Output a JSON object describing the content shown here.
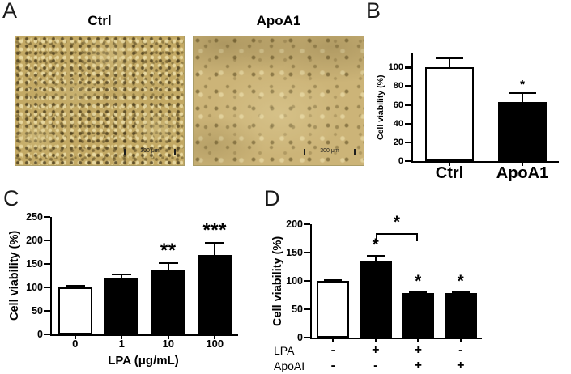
{
  "figure": {
    "panels": {
      "a": {
        "label": "A",
        "micrographs": [
          {
            "title": "Ctrl",
            "scale_bar_label": "300 μm",
            "cell_density": "dense"
          },
          {
            "title": "ApoA1",
            "scale_bar_label": "300 μm",
            "cell_density": "sparse"
          }
        ]
      },
      "b": {
        "label": "B"
      },
      "c": {
        "label": "C"
      },
      "d": {
        "label": "D"
      }
    }
  },
  "colors": {
    "bar_fill_dark": "#000000",
    "bar_fill_light": "#ffffff",
    "axis": "#000000",
    "micrograph_dense_bg": "#c3a964",
    "micrograph_sparse_bg": "#ccb478"
  },
  "chart_data": [
    {
      "id": "B",
      "type": "bar",
      "categories": [
        "Ctrl",
        "ApoA1"
      ],
      "values": [
        100,
        63
      ],
      "errors": [
        10,
        10
      ],
      "bar_styles": [
        "white",
        "black"
      ],
      "annotations": [
        "",
        "*"
      ],
      "ylabel": "Cell viability (%)",
      "yticks": [
        0,
        20,
        40,
        60,
        80,
        100
      ],
      "ylim": [
        0,
        115
      ],
      "grid": false,
      "legend": "none"
    },
    {
      "id": "C",
      "type": "bar",
      "categories": [
        "0",
        "1",
        "10",
        "100"
      ],
      "values": [
        100,
        120,
        136,
        169
      ],
      "errors": [
        4,
        8,
        16,
        25
      ],
      "bar_styles": [
        "white",
        "black",
        "black",
        "black"
      ],
      "annotations": [
        "",
        "",
        "**",
        "***"
      ],
      "xlabel": "LPA (μg/mL)",
      "ylabel": "Cell viability (%)",
      "yticks": [
        0,
        50,
        100,
        150,
        200,
        250
      ],
      "ylim": [
        0,
        250
      ],
      "grid": false,
      "legend": "none"
    },
    {
      "id": "D",
      "type": "bar",
      "values": [
        100,
        136,
        78,
        78
      ],
      "errors": [
        2,
        8,
        2,
        2
      ],
      "bar_styles": [
        "white",
        "black",
        "black",
        "black"
      ],
      "annotations": [
        "",
        "*",
        "*",
        "*"
      ],
      "ylabel": "Cell viability (%)",
      "yticks": [
        0,
        50,
        100,
        150,
        200
      ],
      "ylim": [
        0,
        200
      ],
      "comparison_bracket": {
        "from_bar": 1,
        "to_bar": 2,
        "label": "*",
        "y_value": 185
      },
      "condition_rows": [
        {
          "name": "LPA",
          "values": [
            "-",
            "+",
            "+",
            "-"
          ]
        },
        {
          "name": "ApoAI",
          "values": [
            "-",
            "-",
            "+",
            "+"
          ]
        }
      ],
      "grid": false,
      "legend": "none"
    }
  ]
}
